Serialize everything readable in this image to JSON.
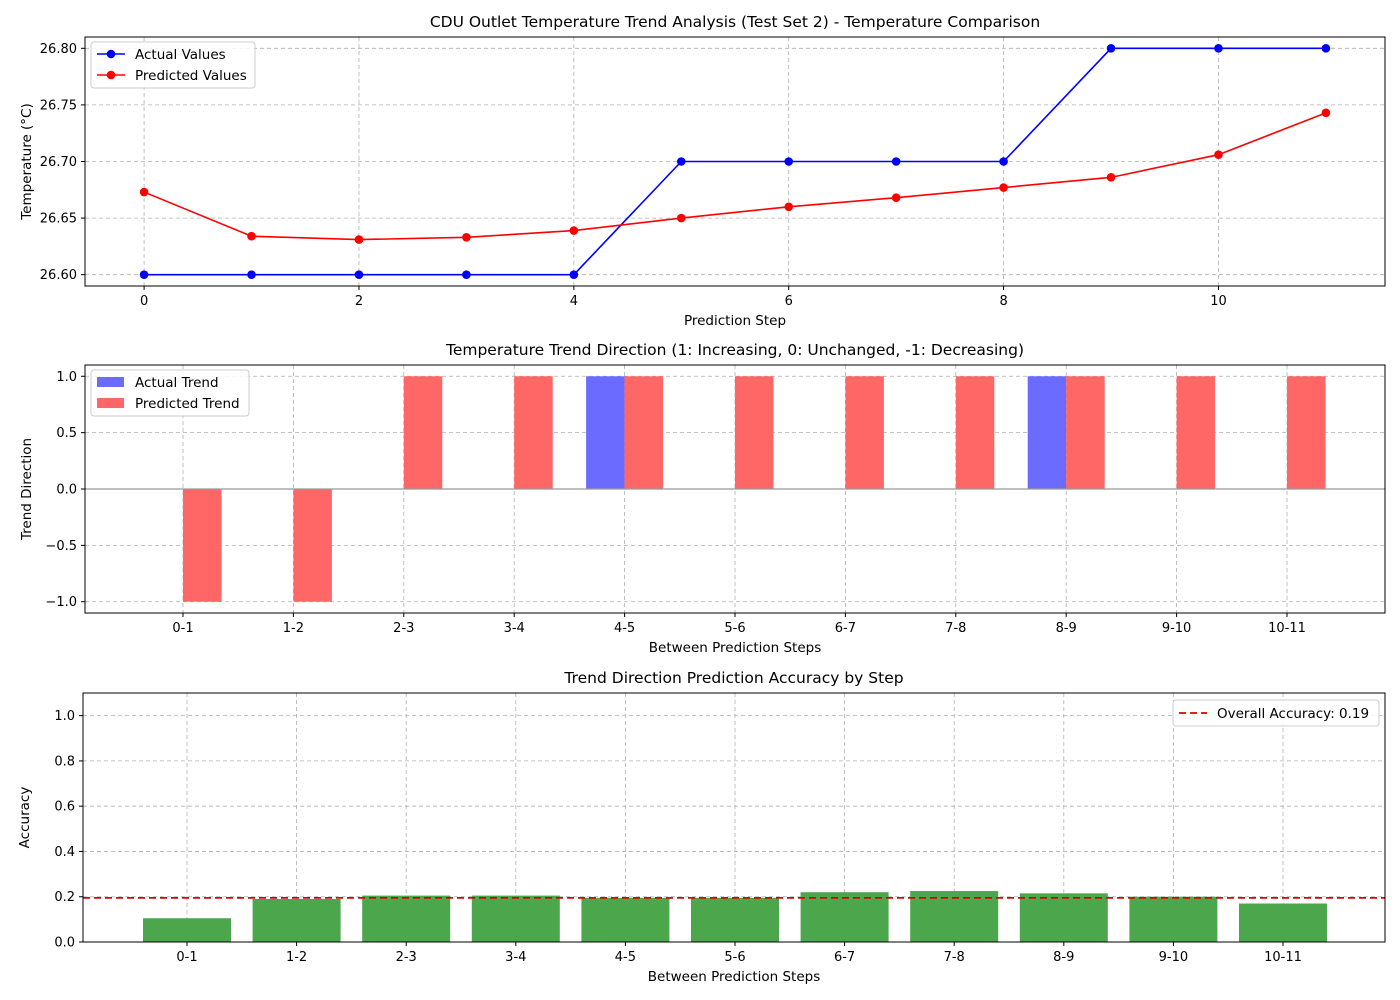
{
  "chart_data": [
    {
      "type": "line",
      "title": "CDU Outlet Temperature Trend Analysis (Test Set 2) - Temperature Comparison",
      "xlabel": "Prediction Step",
      "ylabel": "Temperature (°C)",
      "xlim": [
        -0.55,
        11.55
      ],
      "ylim": [
        26.59,
        26.81
      ],
      "xticks": [
        0,
        2,
        4,
        6,
        8,
        10
      ],
      "yticks": [
        26.6,
        26.65,
        26.7,
        26.75,
        26.8
      ],
      "ytick_labels": [
        "26.60",
        "26.65",
        "26.70",
        "26.75",
        "26.80"
      ],
      "x": [
        0,
        1,
        2,
        3,
        4,
        5,
        6,
        7,
        8,
        9,
        10,
        11
      ],
      "series": [
        {
          "name": "Actual Values",
          "color": "#0000ff",
          "values": [
            26.6,
            26.6,
            26.6,
            26.6,
            26.6,
            26.7,
            26.7,
            26.7,
            26.7,
            26.8,
            26.8,
            26.8
          ]
        },
        {
          "name": "Predicted Values",
          "color": "#ff0000",
          "values": [
            26.673,
            26.634,
            26.631,
            26.633,
            26.639,
            26.65,
            26.66,
            26.668,
            26.677,
            26.686,
            26.706,
            26.743
          ]
        }
      ],
      "legend": "top-left",
      "grid": true
    },
    {
      "type": "bar",
      "title": "Temperature Trend Direction (1: Increasing, 0: Unchanged, -1: Decreasing)",
      "xlabel": "Between Prediction Steps",
      "ylabel": "Trend Direction",
      "ylim": [
        -1.1,
        1.1
      ],
      "yticks": [
        -1.0,
        -0.5,
        0.0,
        0.5,
        1.0
      ],
      "ytick_labels": [
        "−1.0",
        "−0.5",
        "0.0",
        "0.5",
        "1.0"
      ],
      "categories": [
        "0-1",
        "1-2",
        "2-3",
        "3-4",
        "4-5",
        "5-6",
        "6-7",
        "7-8",
        "8-9",
        "9-10",
        "10-11"
      ],
      "series": [
        {
          "name": "Actual Trend",
          "color": "#6b6bff",
          "values": [
            0,
            0,
            0,
            0,
            1,
            0,
            0,
            0,
            1,
            0,
            0
          ]
        },
        {
          "name": "Predicted Trend",
          "color": "#ff6666",
          "values": [
            -1,
            -1,
            1,
            1,
            1,
            1,
            1,
            1,
            1,
            1,
            1
          ]
        }
      ],
      "legend": "top-left",
      "grid": true
    },
    {
      "type": "bar",
      "title": "Trend Direction Prediction Accuracy by Step",
      "xlabel": "Between Prediction Steps",
      "ylabel": "Accuracy",
      "ylim": [
        0,
        1.1
      ],
      "yticks": [
        0.0,
        0.2,
        0.4,
        0.6,
        0.8,
        1.0
      ],
      "ytick_labels": [
        "0.0",
        "0.2",
        "0.4",
        "0.6",
        "0.8",
        "1.0"
      ],
      "categories": [
        "0-1",
        "1-2",
        "2-3",
        "3-4",
        "4-5",
        "5-6",
        "6-7",
        "7-8",
        "8-9",
        "9-10",
        "10-11"
      ],
      "values": [
        0.105,
        0.19,
        0.205,
        0.205,
        0.195,
        0.195,
        0.22,
        0.225,
        0.215,
        0.2,
        0.17
      ],
      "bar_color": "#4ca64c",
      "reference_line": {
        "label": "Overall Accuracy: 0.19",
        "value": 0.195,
        "color": "#dd0000"
      },
      "legend": "top-right",
      "grid": true
    }
  ]
}
